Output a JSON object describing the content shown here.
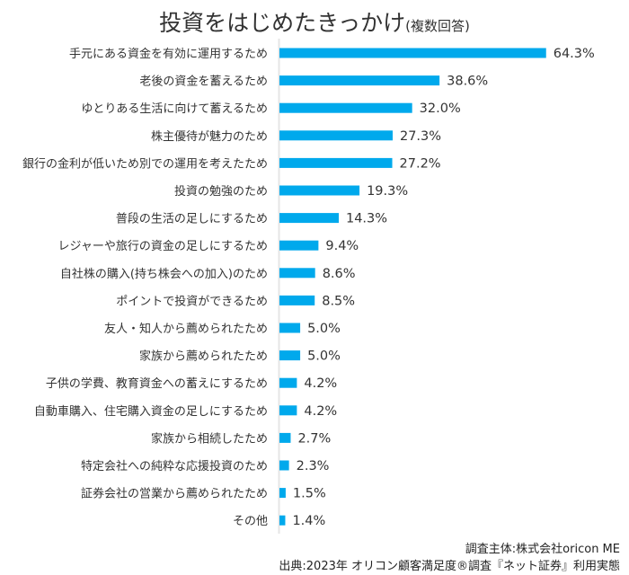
{
  "chart_data": {
    "type": "bar",
    "orientation": "horizontal",
    "title": "投資をはじめたきっかけ",
    "subtitle": "(複数回答)",
    "xlabel": "",
    "ylabel": "",
    "xlim": [
      0,
      70
    ],
    "grid": false,
    "value_suffix": "%",
    "bar_color": "#00a9ec",
    "categories": [
      "手元にある資金を有効に運用するため",
      "老後の資金を蓄えるため",
      "ゆとりある生活に向けて蓄えるため",
      "株主優待が魅力のため",
      "銀行の金利が低いため別での運用を考えたため",
      "投資の勉強のため",
      "普段の生活の足しにするため",
      "レジャーや旅行の資金の足しにするため",
      "自社株の購入(持ち株会への加入)のため",
      "ポイントで投資ができるため",
      "友人・知人から薦められたため",
      "家族から薦められたため",
      "子供の学費、教育資金への蓄えにするため",
      "自動車購入、住宅購入資金の足しにするため",
      "家族から相続したため",
      "特定会社への純粋な応援投資のため",
      "証券会社の営業から薦められたため",
      "その他"
    ],
    "values": [
      64.3,
      38.6,
      32.0,
      27.3,
      27.2,
      19.3,
      14.3,
      9.4,
      8.6,
      8.5,
      5.0,
      5.0,
      4.2,
      4.2,
      2.7,
      2.3,
      1.5,
      1.4
    ],
    "value_labels": [
      "64.3%",
      "38.6%",
      "32.0%",
      "27.3%",
      "27.2%",
      "19.3%",
      "14.3%",
      "9.4%",
      "8.6%",
      "8.5%",
      "5.0%",
      "5.0%",
      "4.2%",
      "4.2%",
      "2.7%",
      "2.3%",
      "1.5%",
      "1.4%"
    ]
  },
  "footer": {
    "line1": "調査主体:株式会社oricon ME",
    "line2": "出典:2023年 オリコン顧客満足度®調査『ネット証券』利用実態"
  },
  "colors": {
    "bar": "#00a9ec",
    "axis": "#e6e6e6",
    "text": "#333333"
  }
}
